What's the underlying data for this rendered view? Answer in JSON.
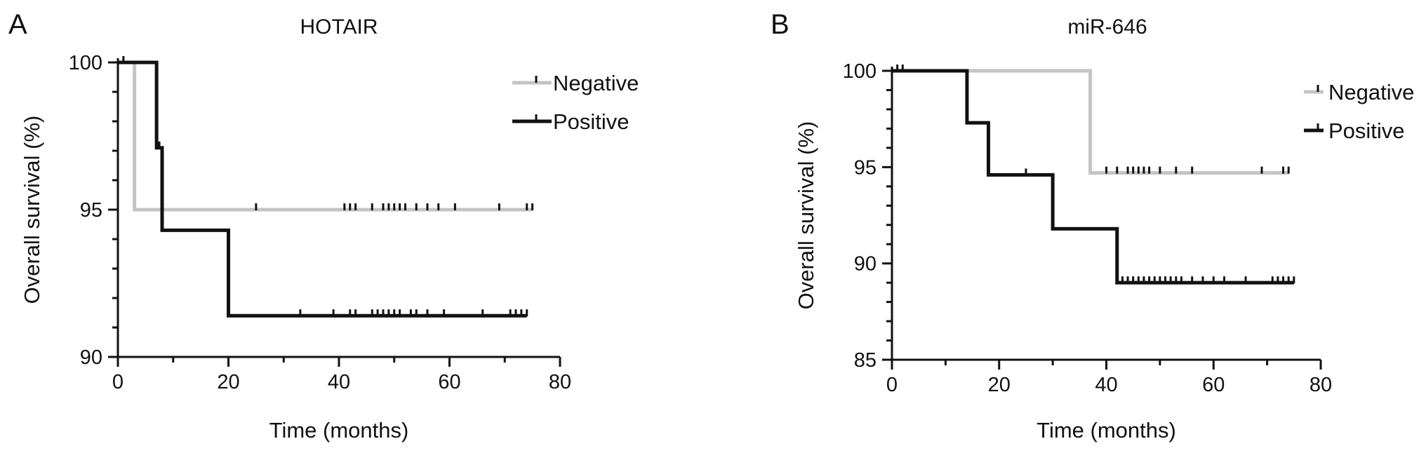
{
  "chart_data": [
    {
      "panel_label": "A",
      "type": "line",
      "subtype": "kaplan-meier step",
      "title": "HOTAIR",
      "xlabel": "Time (months)",
      "ylabel": "Overall survival (%)",
      "xlim": [
        0,
        80
      ],
      "ylim": [
        90,
        100
      ],
      "x_ticks": [
        0,
        20,
        40,
        60,
        80
      ],
      "y_ticks": [
        90,
        95,
        100
      ],
      "legend_position": "top-right",
      "series": [
        {
          "name": "Negative",
          "color": "#c4c4c4",
          "steps": [
            [
              0,
              100
            ],
            [
              3,
              95
            ],
            [
              75,
              95
            ]
          ],
          "censors": [
            [
              1,
              100
            ],
            [
              25,
              95
            ],
            [
              41,
              95
            ],
            [
              42,
              95
            ],
            [
              43,
              95
            ],
            [
              46,
              95
            ],
            [
              48,
              95
            ],
            [
              49,
              95
            ],
            [
              50,
              95
            ],
            [
              51,
              95
            ],
            [
              52,
              95
            ],
            [
              54,
              95
            ],
            [
              56,
              95
            ],
            [
              58,
              95
            ],
            [
              61,
              95
            ],
            [
              69,
              95
            ],
            [
              74,
              95
            ],
            [
              75,
              95
            ]
          ]
        },
        {
          "name": "Positive",
          "color": "#111111",
          "steps": [
            [
              0,
              100
            ],
            [
              7,
              97.1
            ],
            [
              8,
              94.3
            ],
            [
              20,
              91.4
            ],
            [
              74,
              91.4
            ]
          ],
          "censors": [
            [
              7.5,
              97.1
            ],
            [
              33,
              91.4
            ],
            [
              39,
              91.4
            ],
            [
              42,
              91.4
            ],
            [
              43,
              91.4
            ],
            [
              46,
              91.4
            ],
            [
              47,
              91.4
            ],
            [
              48,
              91.4
            ],
            [
              49,
              91.4
            ],
            [
              50,
              91.4
            ],
            [
              51,
              91.4
            ],
            [
              53,
              91.4
            ],
            [
              54,
              91.4
            ],
            [
              56,
              91.4
            ],
            [
              59,
              91.4
            ],
            [
              66,
              91.4
            ],
            [
              71,
              91.4
            ],
            [
              72,
              91.4
            ],
            [
              73,
              91.4
            ],
            [
              74,
              91.4
            ]
          ]
        }
      ]
    },
    {
      "panel_label": "B",
      "type": "line",
      "subtype": "kaplan-meier step",
      "title": "miR-646",
      "xlabel": "Time (months)",
      "ylabel": "Overall survival (%)",
      "xlim": [
        0,
        80
      ],
      "ylim": [
        85,
        100
      ],
      "x_ticks": [
        0,
        20,
        40,
        60,
        80
      ],
      "y_ticks": [
        85,
        90,
        95,
        100
      ],
      "legend_position": "top-right",
      "series": [
        {
          "name": "Negative",
          "color": "#c4c4c4",
          "steps": [
            [
              0,
              100
            ],
            [
              37,
              94.7
            ],
            [
              74,
              94.7
            ]
          ],
          "censors": [
            [
              1,
              100
            ],
            [
              2,
              100
            ],
            [
              40,
              94.7
            ],
            [
              42,
              94.7
            ],
            [
              44,
              94.7
            ],
            [
              45,
              94.7
            ],
            [
              46,
              94.7
            ],
            [
              47,
              94.7
            ],
            [
              48,
              94.7
            ],
            [
              50,
              94.7
            ],
            [
              53,
              94.7
            ],
            [
              56,
              94.7
            ],
            [
              69,
              94.7
            ],
            [
              73,
              94.7
            ],
            [
              74,
              94.7
            ]
          ]
        },
        {
          "name": "Positive",
          "color": "#111111",
          "steps": [
            [
              0,
              100
            ],
            [
              14,
              97.3
            ],
            [
              18,
              94.6
            ],
            [
              30,
              91.8
            ],
            [
              42,
              89.0
            ],
            [
              75,
              89.0
            ]
          ],
          "censors": [
            [
              25,
              94.6
            ],
            [
              43,
              89.0
            ],
            [
              44,
              89.0
            ],
            [
              45,
              89.0
            ],
            [
              46,
              89.0
            ],
            [
              47,
              89.0
            ],
            [
              48,
              89.0
            ],
            [
              49,
              89.0
            ],
            [
              50,
              89.0
            ],
            [
              51,
              89.0
            ],
            [
              52,
              89.0
            ],
            [
              53,
              89.0
            ],
            [
              54,
              89.0
            ],
            [
              56,
              89.0
            ],
            [
              58,
              89.0
            ],
            [
              60,
              89.0
            ],
            [
              62,
              89.0
            ],
            [
              66,
              89.0
            ],
            [
              71,
              89.0
            ],
            [
              72,
              89.0
            ],
            [
              73,
              89.0
            ],
            [
              74,
              89.0
            ],
            [
              75,
              89.0
            ]
          ]
        }
      ]
    }
  ]
}
